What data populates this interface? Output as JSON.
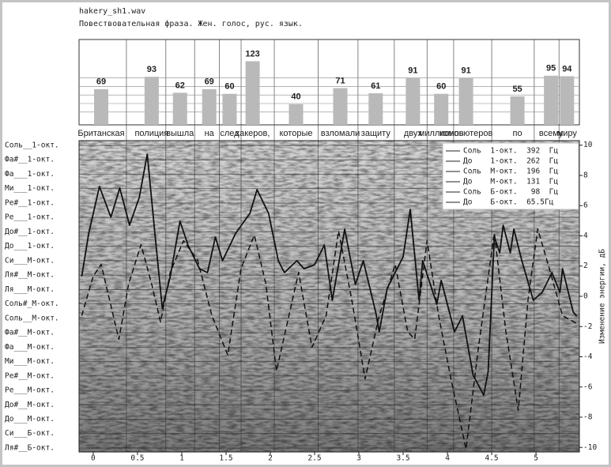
{
  "chart_data": [
    {
      "type": "bar",
      "title": "hakery_sh1.wav",
      "subtitle": "Повествовательная фраза. Жен. голос, рус. язык.",
      "categories": [
        "Британская",
        "полиция",
        "вышла",
        "на",
        "след",
        "хакеров,",
        "которые",
        "взломали",
        "защиту",
        "двух",
        "миллионов",
        "компьютеров",
        "по",
        "всему",
        "миру"
      ],
      "x": [
        0.09,
        0.66,
        0.98,
        1.31,
        1.54,
        1.8,
        2.29,
        2.79,
        3.19,
        3.61,
        3.93,
        4.21,
        4.79,
        5.17,
        5.35
      ],
      "values": [
        69,
        93,
        62,
        69,
        60,
        123,
        40,
        71,
        61,
        91,
        60,
        91,
        55,
        95,
        94
      ],
      "color": "#b9b9b9",
      "xlim": [
        -0.16,
        5.49
      ],
      "ylim": [
        0,
        165
      ]
    },
    {
      "type": "line",
      "xlim": [
        -0.16,
        5.49
      ],
      "xticks": [
        0,
        0.5,
        1,
        1.5,
        2,
        2.5,
        3,
        3.5,
        4,
        4.5,
        5
      ],
      "ylim": [
        114.7,
        399.5
      ],
      "log_y": true,
      "grid": true,
      "yticks": [
        {
          "value": 392,
          "label": "Соль__1-окт."
        },
        {
          "value": 369.99,
          "label": "Фа#__1-окт."
        },
        {
          "value": 349.23,
          "label": "Фа___1-окт."
        },
        {
          "value": 329.63,
          "label": "Ми___1-окт."
        },
        {
          "value": 311.13,
          "label": "Ре#__1-окт."
        },
        {
          "value": 293.66,
          "label": "Ре___1-окт."
        },
        {
          "value": 277.18,
          "label": "До#__1-окт."
        },
        {
          "value": 261.63,
          "label": "До___1-окт."
        },
        {
          "value": 246.94,
          "label": "Си___М-окт."
        },
        {
          "value": 233.08,
          "label": "Ля#__М-окт."
        },
        {
          "value": 220,
          "label": "Ля___М-окт."
        },
        {
          "value": 207.65,
          "label": "Соль#_М-окт."
        },
        {
          "value": 196,
          "label": "Соль__М-окт."
        },
        {
          "value": 185,
          "label": "Фа#__М-окт."
        },
        {
          "value": 174.61,
          "label": "Фа___М-окт."
        },
        {
          "value": 164.81,
          "label": "Ми___М-окт."
        },
        {
          "value": 155.56,
          "label": "Ре#__М-окт."
        },
        {
          "value": 146.83,
          "label": "Ре___М-окт."
        },
        {
          "value": 138.59,
          "label": "До#__М-окт."
        },
        {
          "value": 130.81,
          "label": "До___М-окт."
        },
        {
          "value": 123.47,
          "label": "Си___Б-окт."
        },
        {
          "value": 116.54,
          "label": "Ля#__Б-окт."
        }
      ],
      "y2lim": [
        -10.3,
        10.3
      ],
      "y2ticks": [
        -10,
        -8,
        -6,
        -4,
        -2,
        0,
        2,
        4,
        6,
        8,
        10
      ],
      "y2label": "Изменение энергии, дБ",
      "legend_table": [
        "Соль  1-окт.  392  Гц",
        "До    1-окт.  262  Гц",
        "Соль  М-окт.  196  Гц",
        "До    М-окт.  131  Гц",
        "Соль  Б-окт.   98  Гц",
        "До    Б-окт.  65.5Гц"
      ],
      "series": [
        {
          "color": "#111111",
          "style": "solid",
          "x": [
            -0.13,
            -0.05,
            0.07,
            0.2,
            0.3,
            0.41,
            0.52,
            0.61,
            0.7,
            0.78,
            0.87,
            0.98,
            1.07,
            1.2,
            1.29,
            1.38,
            1.46,
            1.61,
            1.77,
            1.85,
            1.98,
            2.09,
            2.16,
            2.3,
            2.38,
            2.5,
            2.61,
            2.7,
            2.84,
            2.96,
            3.05,
            3.19,
            3.23,
            3.32,
            3.5,
            3.58,
            3.68,
            3.72,
            3.88,
            3.93,
            4.08,
            4.17,
            4.29,
            4.41,
            4.46,
            4.53,
            4.59,
            4.63,
            4.71,
            4.75,
            4.84,
            4.97,
            5.07,
            5.18,
            5.27,
            5.3,
            5.42,
            5.46
          ],
          "values": [
            231.7,
            275.8,
            332.4,
            293.9,
            330.5,
            284.7,
            318.1,
            378.6,
            271.5,
            204.2,
            231.7,
            289.3,
            263,
            239.1,
            235.4,
            271.5,
            246.9,
            275.8,
            298.5,
            328.3,
            298.5,
            246.9,
            235.4,
            246.9,
            239.1,
            243,
            263,
            210.7,
            280.2,
            224.5,
            246.9,
            200.9,
            185.6,
            221,
            250.8,
            303.3,
            210.7,
            246.9,
            207.4,
            228.1,
            185.6,
            197.8,
            156,
            144.1,
            158.4,
            271.5,
            254.8,
            284.7,
            254.8,
            280.2,
            246.9,
            210.7,
            217.5,
            235.4,
            217.5,
            239.1,
            200.9,
            197.8
          ]
        },
        {
          "color": "#111111",
          "style": "dashed",
          "axis": "y2",
          "x": [
            -0.13,
            0,
            0.09,
            0.29,
            0.4,
            0.54,
            0.66,
            0.76,
            0.87,
            1.02,
            1.18,
            1.34,
            1.52,
            1.67,
            1.82,
            1.95,
            2.07,
            2.21,
            2.32,
            2.47,
            2.63,
            2.77,
            2.92,
            3.07,
            3.23,
            3.41,
            3.55,
            3.63,
            3.77,
            3.9,
            4.04,
            4.21,
            4.35,
            4.53,
            4.66,
            4.8,
            4.91,
            5.02,
            5.15,
            5.3,
            5.46
          ],
          "values": [
            -1.28,
            1.33,
            2.11,
            -2.85,
            0.81,
            3.42,
            0.81,
            -1.7,
            1.59,
            3.68,
            2.38,
            -1.28,
            -3.89,
            1.85,
            4.05,
            0.81,
            -4.94,
            -1.28,
            1.59,
            -3.37,
            -1.28,
            4.33,
            -0.24,
            -5.46,
            -1.28,
            2.11,
            -2.33,
            -2.85,
            3.68,
            -1.28,
            -5.46,
            -10.1,
            -3.37,
            4.2,
            -2.33,
            -7.55,
            -0.24,
            4.46,
            1.85,
            -1.28,
            -1.8
          ]
        }
      ]
    }
  ]
}
